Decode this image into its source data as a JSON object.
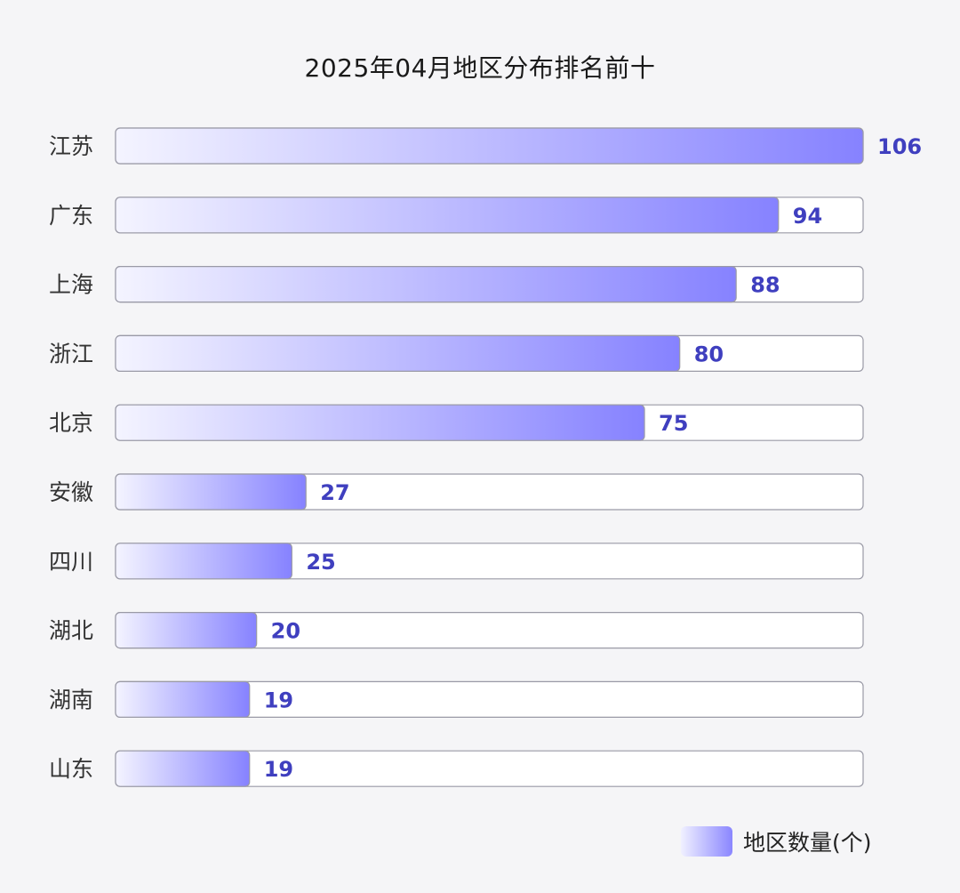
{
  "chart_data": {
    "type": "bar",
    "orientation": "horizontal",
    "title": "2025年04月地区分布排名前十",
    "categories": [
      "江苏",
      "广东",
      "上海",
      "浙江",
      "北京",
      "安徽",
      "四川",
      "湖北",
      "湖南",
      "山东"
    ],
    "series": [
      {
        "name": "地区数量(个)",
        "values": [
          106,
          94,
          88,
          80,
          75,
          27,
          25,
          20,
          19,
          19
        ]
      }
    ],
    "xlim": [
      0,
      106
    ],
    "grid": false,
    "legend_position": "bottom-right",
    "colors": {
      "bar_start": "#f4f4ff",
      "bar_end": "#8682ff",
      "label": "#3f3fbf",
      "track_border": "#9a9aa6",
      "track_fill": "#ffffff"
    }
  }
}
